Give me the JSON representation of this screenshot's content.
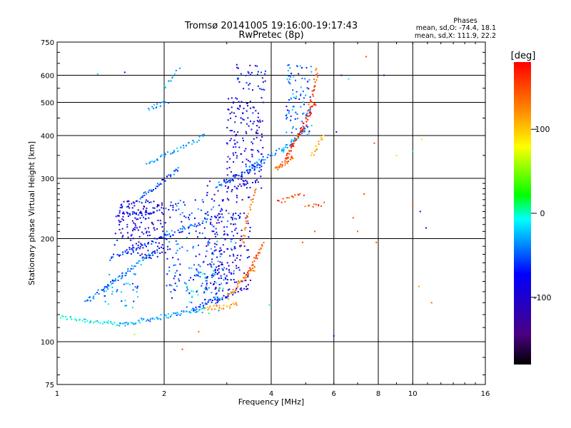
{
  "chart_data": {
    "type": "scatter",
    "title": "Tromsø 20141005 19:16:00-19:17:43",
    "subtitle": "RwPretec (8p)",
    "xlabel": "Frequency [MHz]",
    "ylabel": "Stationary phase Virtual Height [km]",
    "x_scale": "log",
    "y_scale": "log",
    "xlim": [
      1,
      16
    ],
    "ylim": [
      75,
      750
    ],
    "x_ticks": [
      1,
      2,
      4,
      6,
      8,
      10,
      16
    ],
    "y_ticks": [
      75,
      100,
      200,
      300,
      400,
      500,
      600,
      750
    ],
    "x_grid": [
      2,
      4,
      6,
      8,
      10
    ],
    "y_grid": [
      100,
      200,
      300,
      400,
      500,
      600
    ],
    "stats": {
      "title": "Phases",
      "line_o": "mean, sd,O: -74.4, 18.1",
      "line_x": "mean, sd,X: 111.9, 22.2"
    },
    "colorbar": {
      "label": "[deg]",
      "range": [
        -180,
        180
      ],
      "ticks": [
        -100,
        0,
        100
      ]
    },
    "series": [
      {
        "traces": [
          {
            "x0": 1.02,
            "x1": 1.5,
            "h0": 118,
            "h1": 112,
            "phase": -30,
            "n": 40
          },
          {
            "x0": 1.5,
            "x1": 2.6,
            "h0": 112,
            "h1": 125,
            "phase": -55,
            "n": 70
          },
          {
            "x0": 2.4,
            "x1": 3.2,
            "h0": 125,
            "h1": 140,
            "phase": -85,
            "n": 35
          },
          {
            "x0": 1.2,
            "x1": 1.9,
            "h0": 130,
            "h1": 185,
            "phase": -60,
            "n": 70
          },
          {
            "x0": 1.4,
            "x1": 2.9,
            "h0": 175,
            "h1": 235,
            "phase": -75,
            "n": 80
          },
          {
            "x0": 1.5,
            "x1": 1.85,
            "h0": 235,
            "h1": 238,
            "phase": -95,
            "n": 30
          },
          {
            "x0": 1.7,
            "x1": 2.2,
            "h0": 260,
            "h1": 320,
            "phase": -70,
            "n": 40
          },
          {
            "x0": 1.8,
            "x1": 2.6,
            "h0": 330,
            "h1": 400,
            "phase": -55,
            "n": 40
          },
          {
            "x0": 1.8,
            "x1": 2.05,
            "h0": 480,
            "h1": 500,
            "phase": -50,
            "n": 14
          },
          {
            "x0": 2.0,
            "x1": 2.2,
            "h0": 560,
            "h1": 620,
            "phase": -45,
            "n": 10
          },
          {
            "x0": 2.8,
            "x1": 3.8,
            "h0": 285,
            "h1": 330,
            "phase": -70,
            "n": 50
          },
          {
            "x0": 3.4,
            "x1": 4.5,
            "h0": 320,
            "h1": 375,
            "phase": -60,
            "n": 30
          },
          {
            "x0": 4.3,
            "x1": 5.0,
            "h0": 360,
            "h1": 420,
            "phase": -45,
            "n": 30
          },
          {
            "x0": 2.6,
            "x1": 3.2,
            "h0": 125,
            "h1": 128,
            "phase": 125,
            "n": 25
          },
          {
            "x0": 3.0,
            "x1": 3.6,
            "h0": 135,
            "h1": 165,
            "phase": 135,
            "n": 40
          },
          {
            "x0": 3.4,
            "x1": 3.8,
            "h0": 155,
            "h1": 195,
            "phase": 150,
            "n": 30
          },
          {
            "x0": 3.3,
            "x1": 3.6,
            "h0": 190,
            "h1": 280,
            "phase": 140,
            "n": 25
          },
          {
            "x0": 4.1,
            "x1": 4.6,
            "h0": 320,
            "h1": 345,
            "phase": 145,
            "n": 30
          },
          {
            "x0": 4.4,
            "x1": 4.9,
            "h0": 345,
            "h1": 420,
            "phase": 160,
            "n": 35
          },
          {
            "x0": 4.8,
            "x1": 5.3,
            "h0": 400,
            "h1": 500,
            "phase": 170,
            "n": 30
          },
          {
            "x0": 5.1,
            "x1": 5.4,
            "h0": 470,
            "h1": 620,
            "phase": 150,
            "n": 25
          },
          {
            "x0": 4.2,
            "x1": 4.9,
            "h0": 255,
            "h1": 270,
            "phase": 150,
            "n": 15
          },
          {
            "x0": 5.0,
            "x1": 5.6,
            "h0": 250,
            "h1": 252,
            "phase": 150,
            "n": 10
          },
          {
            "x0": 5.2,
            "x1": 5.6,
            "h0": 350,
            "h1": 400,
            "phase": 110,
            "n": 15
          }
        ],
        "clusters": [
          {
            "x0": 1.45,
            "x1": 2.0,
            "h0": 175,
            "h1": 260,
            "phase": -105,
            "n": 170
          },
          {
            "x0": 2.0,
            "x1": 3.2,
            "h0": 130,
            "h1": 260,
            "phase": -80,
            "n": 220
          },
          {
            "x0": 2.6,
            "x1": 3.5,
            "h0": 140,
            "h1": 300,
            "phase": -110,
            "n": 170
          },
          {
            "x0": 3.0,
            "x1": 3.8,
            "h0": 280,
            "h1": 520,
            "phase": -105,
            "n": 160
          },
          {
            "x0": 3.2,
            "x1": 3.9,
            "h0": 540,
            "h1": 650,
            "phase": -95,
            "n": 35
          },
          {
            "x0": 4.4,
            "x1": 5.2,
            "h0": 400,
            "h1": 650,
            "phase": -70,
            "n": 90
          },
          {
            "x0": 2.3,
            "x1": 2.95,
            "h0": 120,
            "h1": 170,
            "phase": -40,
            "n": 50
          },
          {
            "x0": 1.35,
            "x1": 1.7,
            "h0": 125,
            "h1": 160,
            "phase": -60,
            "n": 40
          }
        ],
        "scattered": [
          {
            "x": 6.3,
            "h": 600,
            "phase": -105
          },
          {
            "x": 7.4,
            "h": 680,
            "phase": 155
          },
          {
            "x": 8.3,
            "h": 600,
            "phase": -110
          },
          {
            "x": 6.6,
            "h": 585,
            "phase": -30
          },
          {
            "x": 6.1,
            "h": 410,
            "phase": -90
          },
          {
            "x": 7.8,
            "h": 380,
            "phase": 150
          },
          {
            "x": 9.0,
            "h": 350,
            "phase": 100
          },
          {
            "x": 10.0,
            "h": 360,
            "phase": -40
          },
          {
            "x": 10.6,
            "h": 390,
            "phase": 100
          },
          {
            "x": 10.0,
            "h": 250,
            "phase": 150
          },
          {
            "x": 10.5,
            "h": 240,
            "phase": -100
          },
          {
            "x": 7.3,
            "h": 270,
            "phase": 150
          },
          {
            "x": 6.8,
            "h": 230,
            "phase": 150
          },
          {
            "x": 7.0,
            "h": 210,
            "phase": 150
          },
          {
            "x": 7.9,
            "h": 195,
            "phase": 150
          },
          {
            "x": 10.9,
            "h": 215,
            "phase": -100
          },
          {
            "x": 11.3,
            "h": 130,
            "phase": 140
          },
          {
            "x": 10.4,
            "h": 145,
            "phase": 120
          },
          {
            "x": 6.0,
            "h": 104,
            "phase": -100
          },
          {
            "x": 2.5,
            "h": 107,
            "phase": 140
          },
          {
            "x": 2.25,
            "h": 95,
            "phase": 150
          },
          {
            "x": 1.65,
            "h": 105,
            "phase": 60
          },
          {
            "x": 1.3,
            "h": 605,
            "phase": -40
          },
          {
            "x": 1.55,
            "h": 612,
            "phase": -100
          },
          {
            "x": 3.1,
            "h": 515,
            "phase": -100
          },
          {
            "x": 5.3,
            "h": 210,
            "phase": 150
          },
          {
            "x": 4.9,
            "h": 195,
            "phase": 150
          },
          {
            "x": 3.95,
            "h": 128,
            "phase": -30
          }
        ]
      }
    ]
  }
}
